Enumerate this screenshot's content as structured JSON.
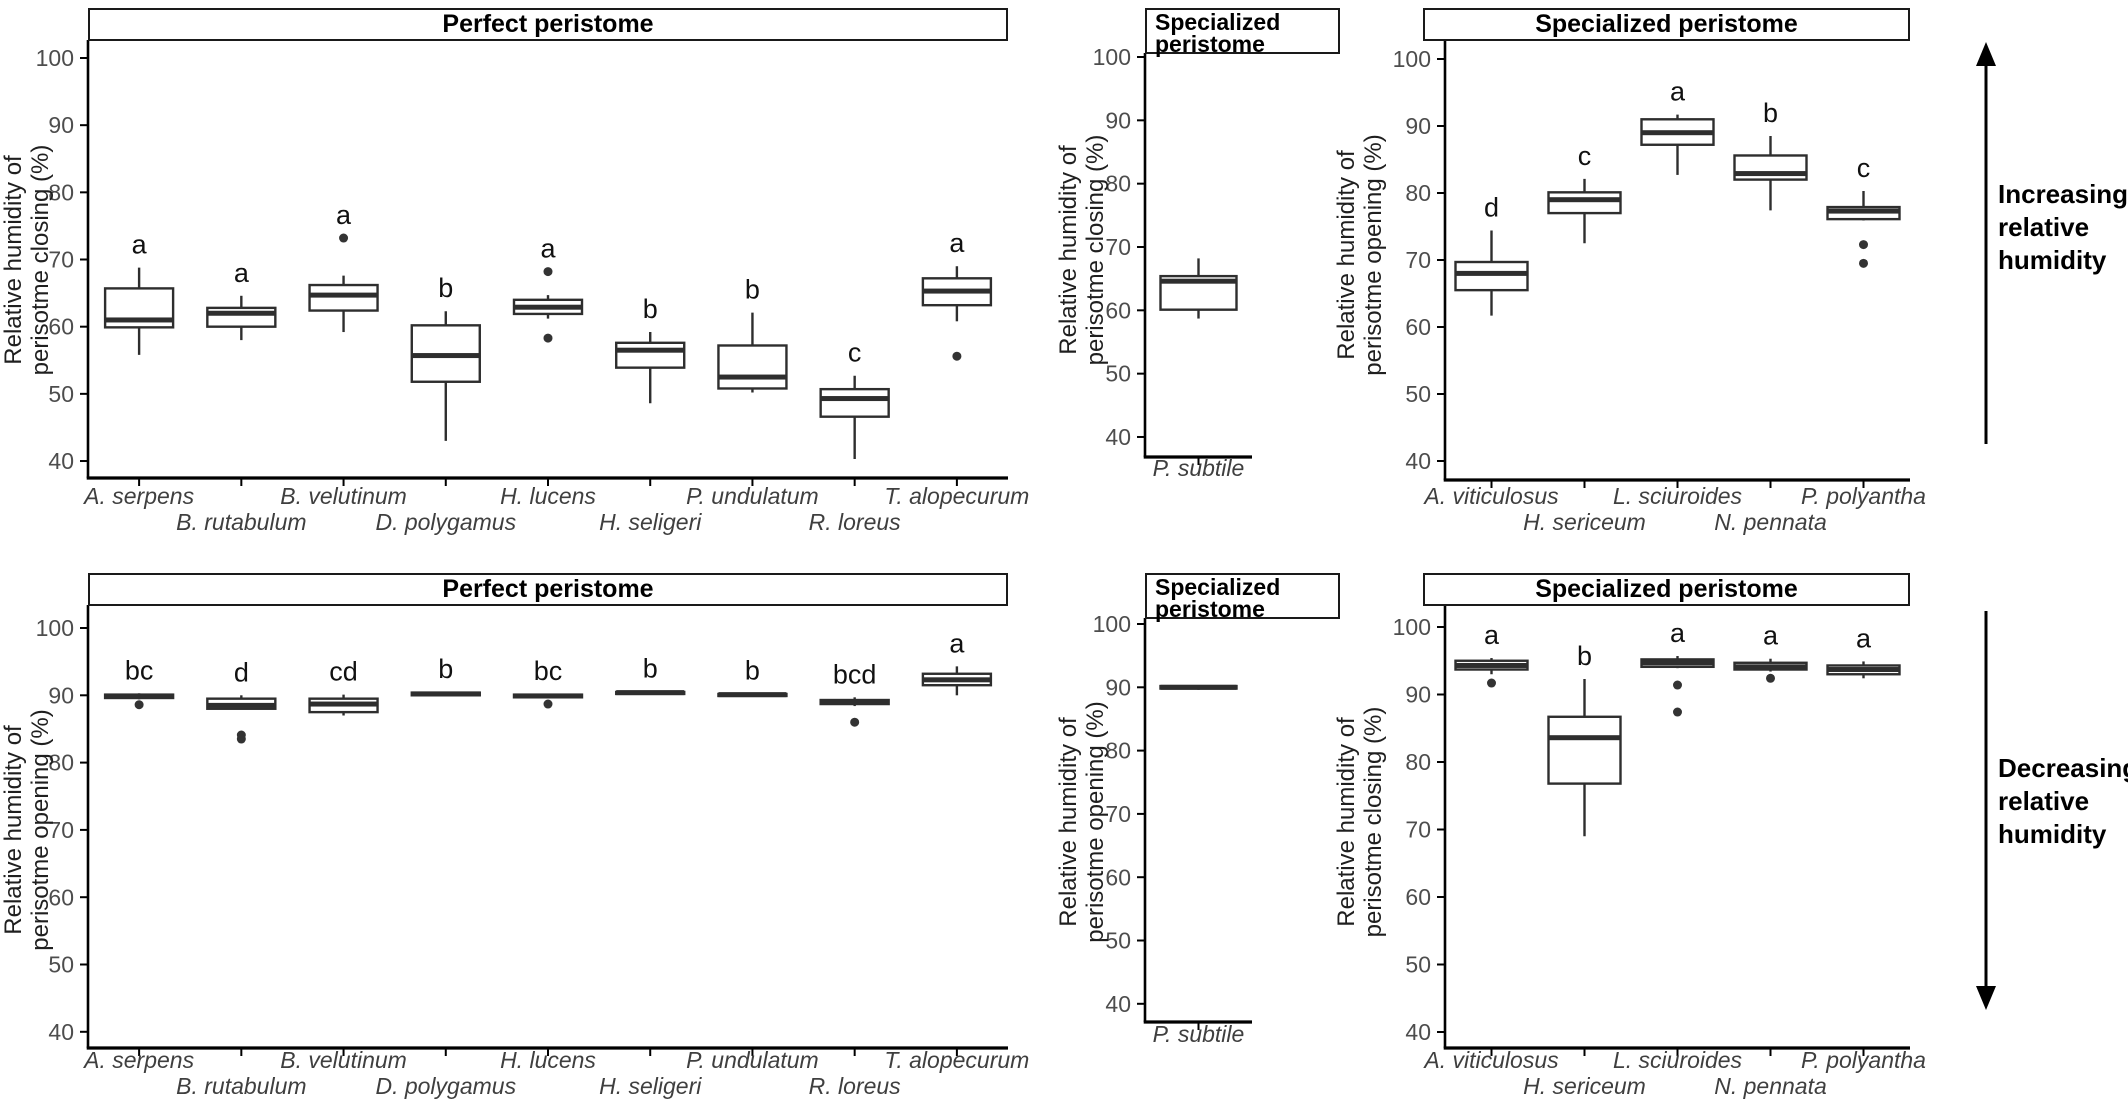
{
  "colors": {
    "background": "#ffffff",
    "axis": "#000000",
    "box_stroke": "#2e2e2e",
    "box_fill": "#ffffff",
    "median": "#2e2e2e",
    "outlier": "#333333",
    "tick_label": "#4d4d4d",
    "species_label": "#3f3f3f",
    "letter": "#111111"
  },
  "annotations": [
    {
      "id": "increasing",
      "direction": "up",
      "lines": [
        "Increasing",
        "relative",
        "humidity"
      ]
    },
    {
      "id": "decreasing",
      "direction": "down",
      "lines": [
        "Decreasing",
        "relative",
        "humidity"
      ]
    }
  ],
  "chart_data": [
    {
      "id": "top-left",
      "type": "boxplot",
      "title": "Perfect peristome",
      "ylabel_lines": [
        "Relative humidity of",
        "perisotme closing (%)"
      ],
      "ylim": [
        40,
        100
      ],
      "yticks": [
        100,
        90,
        80,
        70,
        60,
        50,
        40
      ],
      "boxes": [
        {
          "species": "A. serpens",
          "letter": "a",
          "low": 55.8,
          "q1": 59.9,
          "median": 61.0,
          "q3": 65.7,
          "high": 68.8,
          "outliers": []
        },
        {
          "species": "B. rutabulum",
          "letter": "a",
          "low": 58.0,
          "q1": 60.0,
          "median": 62.0,
          "q3": 62.8,
          "high": 64.6,
          "outliers": []
        },
        {
          "species": "B. velutinum",
          "letter": "a",
          "low": 59.2,
          "q1": 62.4,
          "median": 64.7,
          "q3": 66.2,
          "high": 67.6,
          "outliers": [
            73.2
          ]
        },
        {
          "species": "D. polygamus",
          "letter": "b",
          "low": 43.0,
          "q1": 51.8,
          "median": 55.7,
          "q3": 60.2,
          "high": 62.3,
          "outliers": []
        },
        {
          "species": "H. lucens",
          "letter": "a",
          "low": 61.2,
          "q1": 61.9,
          "median": 62.9,
          "q3": 64.0,
          "high": 64.7,
          "outliers": [
            68.2,
            58.3
          ]
        },
        {
          "species": "H. seligeri",
          "letter": "b",
          "low": 48.6,
          "q1": 53.9,
          "median": 56.5,
          "q3": 57.6,
          "high": 59.2,
          "outliers": []
        },
        {
          "species": "P. undulatum",
          "letter": "b",
          "low": 50.2,
          "q1": 50.8,
          "median": 52.5,
          "q3": 57.2,
          "high": 62.1,
          "outliers": []
        },
        {
          "species": "R. loreus",
          "letter": "c",
          "low": 40.3,
          "q1": 46.6,
          "median": 49.3,
          "q3": 50.7,
          "high": 52.7,
          "outliers": []
        },
        {
          "species": "T. alopecurum",
          "letter": "a",
          "low": 60.8,
          "q1": 63.2,
          "median": 65.3,
          "q3": 67.2,
          "high": 69.0,
          "outliers": [
            55.6
          ]
        }
      ]
    },
    {
      "id": "top-middle",
      "type": "boxplot",
      "title": "Specialized peristome",
      "ylabel_lines": [
        "Relative humidity of",
        "perisotme closing (%)"
      ],
      "ylim": [
        40,
        100
      ],
      "yticks": [
        100,
        90,
        80,
        70,
        60,
        50,
        40
      ],
      "boxes": [
        {
          "species": "P. subtile",
          "letter": "",
          "low": 58.7,
          "q1": 60.1,
          "median": 64.6,
          "q3": 65.4,
          "high": 68.2,
          "outliers": []
        }
      ]
    },
    {
      "id": "top-right",
      "type": "boxplot",
      "title": "Specialized peristome",
      "ylabel_lines": [
        "Relative humidity of",
        "perisotme opening (%)"
      ],
      "ylim": [
        40,
        100
      ],
      "yticks": [
        100,
        90,
        80,
        70,
        60,
        50,
        40
      ],
      "boxes": [
        {
          "species": "A. viticulosus",
          "letter": "d",
          "low": 61.7,
          "q1": 65.5,
          "median": 68.0,
          "q3": 69.7,
          "high": 74.4,
          "outliers": []
        },
        {
          "species": "H. sericeum",
          "letter": "c",
          "low": 72.5,
          "q1": 77.0,
          "median": 79.0,
          "q3": 80.1,
          "high": 82.1,
          "outliers": []
        },
        {
          "species": "L. sciuroides",
          "letter": "a",
          "low": 82.7,
          "q1": 87.2,
          "median": 89.0,
          "q3": 91.0,
          "high": 91.7,
          "outliers": []
        },
        {
          "species": "N. pennata",
          "letter": "b",
          "low": 77.4,
          "q1": 82.0,
          "median": 82.9,
          "q3": 85.6,
          "high": 88.5,
          "outliers": []
        },
        {
          "species": "P. polyantha",
          "letter": "c",
          "low": 75.9,
          "q1": 76.1,
          "median": 77.3,
          "q3": 77.9,
          "high": 80.3,
          "outliers": [
            72.3,
            69.5
          ]
        }
      ]
    },
    {
      "id": "bottom-left",
      "type": "boxplot",
      "title": "Perfect peristome",
      "ylabel_lines": [
        "Relative humidity of",
        "perisotme opening (%)"
      ],
      "ylim": [
        40,
        100
      ],
      "yticks": [
        100,
        90,
        80,
        70,
        60,
        50,
        40
      ],
      "boxes": [
        {
          "species": "A. serpens",
          "letter": "bc",
          "low": 89.4,
          "q1": 89.6,
          "median": 89.9,
          "q3": 90.1,
          "high": 90.3,
          "outliers": [
            88.6
          ]
        },
        {
          "species": "B. rutabulum",
          "letter": "d",
          "low": 87.9,
          "q1": 88.0,
          "median": 88.5,
          "q3": 89.5,
          "high": 90.0,
          "outliers": [
            84.1,
            83.5
          ]
        },
        {
          "species": "B. velutinum",
          "letter": "cd",
          "low": 87.0,
          "q1": 87.5,
          "median": 88.7,
          "q3": 89.5,
          "high": 90.1,
          "outliers": []
        },
        {
          "species": "D. polygamus",
          "letter": "b",
          "low": 89.9,
          "q1": 90.0,
          "median": 90.2,
          "q3": 90.4,
          "high": 90.5,
          "outliers": []
        },
        {
          "species": "H. lucens",
          "letter": "bc",
          "low": 89.6,
          "q1": 89.7,
          "median": 89.9,
          "q3": 90.1,
          "high": 90.2,
          "outliers": [
            88.7
          ]
        },
        {
          "species": "H. seligeri",
          "letter": "b",
          "low": 90.1,
          "q1": 90.2,
          "median": 90.4,
          "q3": 90.5,
          "high": 90.6,
          "outliers": []
        },
        {
          "species": "P. undulatum",
          "letter": "b",
          "low": 89.8,
          "q1": 89.9,
          "median": 90.1,
          "q3": 90.2,
          "high": 90.3,
          "outliers": []
        },
        {
          "species": "R. loreus",
          "letter": "bcd",
          "low": 88.4,
          "q1": 88.7,
          "median": 89.0,
          "q3": 89.3,
          "high": 89.7,
          "outliers": [
            86.0
          ]
        },
        {
          "species": "T. alopecurum",
          "letter": "a",
          "low": 90.0,
          "q1": 91.5,
          "median": 92.3,
          "q3": 93.2,
          "high": 94.3,
          "outliers": []
        }
      ]
    },
    {
      "id": "bottom-middle",
      "type": "boxplot",
      "title": "Specialized peristome",
      "ylabel_lines": [
        "Relative humidity of",
        "perisotme opening (%)"
      ],
      "ylim": [
        40,
        100
      ],
      "yticks": [
        100,
        90,
        80,
        70,
        60,
        50,
        40
      ],
      "boxes": [
        {
          "species": "P. subtile",
          "letter": "",
          "low": 89.6,
          "q1": 89.8,
          "median": 90.0,
          "q3": 90.2,
          "high": 90.3,
          "outliers": []
        }
      ]
    },
    {
      "id": "bottom-right",
      "type": "boxplot",
      "title": "Specialized peristome",
      "ylabel_lines": [
        "Relative humidity of",
        "perisotme closing (%)"
      ],
      "ylim": [
        40,
        100
      ],
      "yticks": [
        100,
        90,
        80,
        70,
        60,
        50,
        40
      ],
      "boxes": [
        {
          "species": "A. viticulosus",
          "letter": "a",
          "low": 93.0,
          "q1": 93.7,
          "median": 94.3,
          "q3": 95.0,
          "high": 95.4,
          "outliers": [
            91.7
          ]
        },
        {
          "species": "H. sericeum",
          "letter": "b",
          "low": 69.0,
          "q1": 76.8,
          "median": 83.6,
          "q3": 86.7,
          "high": 92.3,
          "outliers": []
        },
        {
          "species": "L. sciuroides",
          "letter": "a",
          "low": 93.9,
          "q1": 94.1,
          "median": 94.7,
          "q3": 95.2,
          "high": 95.7,
          "outliers": [
            91.4,
            87.4
          ]
        },
        {
          "species": "N. pennata",
          "letter": "a",
          "low": 93.4,
          "q1": 93.7,
          "median": 94.1,
          "q3": 94.7,
          "high": 95.3,
          "outliers": [
            92.4
          ]
        },
        {
          "species": "P. polyantha",
          "letter": "a",
          "low": 92.4,
          "q1": 93.0,
          "median": 93.7,
          "q3": 94.3,
          "high": 94.9,
          "outliers": []
        }
      ]
    }
  ]
}
